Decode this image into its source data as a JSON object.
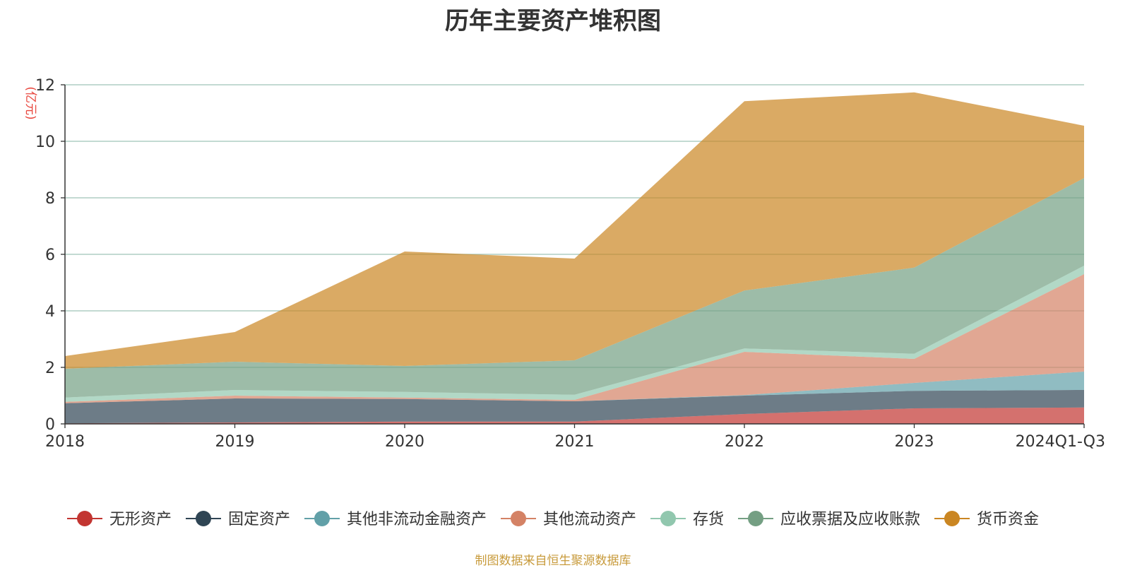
{
  "title": "历年主要资产堆积图",
  "source": "制图数据来自恒生聚源数据库",
  "chart_data": {
    "type": "area",
    "stacked": true,
    "title": "历年主要资产堆积图",
    "unit_label": "(亿元)",
    "categories": [
      "2018",
      "2019",
      "2020",
      "2021",
      "2022",
      "2023",
      "2024Q1-Q3"
    ],
    "ylim": [
      0,
      12
    ],
    "yticks": [
      0,
      2,
      4,
      6,
      8,
      10,
      12
    ],
    "grid": true,
    "legend_position": "bottom",
    "series": [
      {
        "name": "无形资产",
        "color": "#c23531",
        "values": [
          0.02,
          0.05,
          0.08,
          0.08,
          0.35,
          0.55,
          0.58
        ]
      },
      {
        "name": "固定资产",
        "color": "#2f4554",
        "values": [
          0.71,
          0.85,
          0.8,
          0.72,
          0.65,
          0.62,
          0.62
        ]
      },
      {
        "name": "其他非流动金融资产",
        "color": "#61a0a8",
        "values": [
          0.0,
          0.0,
          0.0,
          0.0,
          0.02,
          0.28,
          0.65
        ]
      },
      {
        "name": "其他流动资产",
        "color": "#d48265",
        "values": [
          0.05,
          0.1,
          0.05,
          0.05,
          1.53,
          0.85,
          3.45
        ]
      },
      {
        "name": "存货",
        "color": "#91c7ae",
        "values": [
          0.15,
          0.2,
          0.2,
          0.18,
          0.12,
          0.18,
          0.3
        ]
      },
      {
        "name": "应收票据及应收账款",
        "color": "#749f83",
        "values": [
          1.02,
          1.0,
          0.92,
          1.22,
          2.05,
          3.05,
          3.1
        ]
      },
      {
        "name": "货币资金",
        "color": "#ca8622",
        "values": [
          0.45,
          1.05,
          4.05,
          3.6,
          6.7,
          6.2,
          1.85
        ]
      }
    ]
  }
}
